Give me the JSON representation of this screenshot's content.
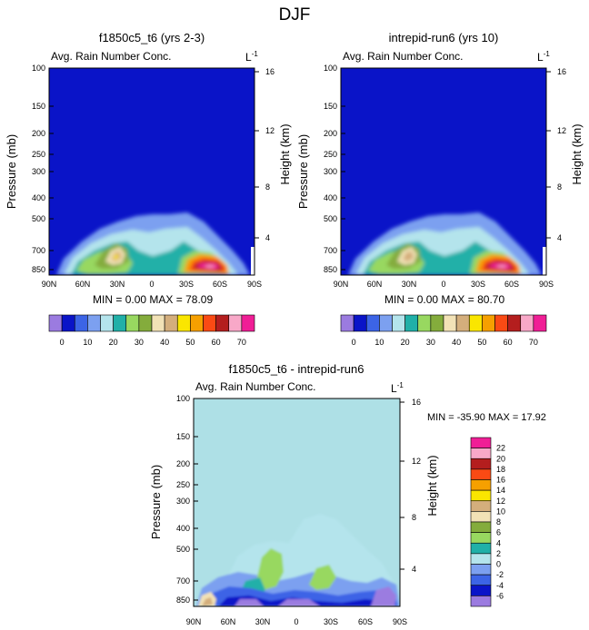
{
  "figure_title": "DJF",
  "colors": {
    "bg_dark_blue": "#0a14c8",
    "bg_diff_cyan": "#aee0e6"
  },
  "chart_data": [
    {
      "type": "heatmap",
      "title": "f1850c5_t6 (yrs 2-3)",
      "subtitle": "Avg. Rain Number Conc.",
      "units": "L",
      "units_exp": "-1",
      "xlabel": "",
      "ylabel": "Pressure (mb)",
      "ylabel_right": "Height (km)",
      "x_ticks": [
        "90N",
        "60N",
        "30N",
        "0",
        "30S",
        "60S",
        "90S"
      ],
      "y_ticks": [
        "100",
        "150",
        "200",
        "250",
        "300",
        "400",
        "500",
        "700",
        "850"
      ],
      "y_ticks_right": [
        "16",
        "12",
        "8",
        "4"
      ],
      "min_label": "MIN =",
      "min": "0.00",
      "max_label": "MAX =",
      "max": "78.09"
    },
    {
      "type": "heatmap",
      "title": "intrepid-run6 (yrs 10)",
      "subtitle": "Avg. Rain Number Conc.",
      "units": "L",
      "units_exp": "-1",
      "xlabel": "",
      "ylabel": "Pressure (mb)",
      "ylabel_right": "Height (km)",
      "x_ticks": [
        "90N",
        "60N",
        "30N",
        "0",
        "30S",
        "60S",
        "90S"
      ],
      "y_ticks": [
        "100",
        "150",
        "200",
        "250",
        "300",
        "400",
        "500",
        "700",
        "850"
      ],
      "y_ticks_right": [
        "16",
        "12",
        "8",
        "4"
      ],
      "min_label": "MIN =",
      "min": "0.00",
      "max_label": "MAX =",
      "max": "80.70"
    },
    {
      "type": "heatmap",
      "title": "f1850c5_t6 - intrepid-run6",
      "subtitle": "Avg. Rain Number Conc.",
      "units": "L",
      "units_exp": "-1",
      "xlabel": "",
      "ylabel": "Pressure (mb)",
      "ylabel_right": "Height (km)",
      "x_ticks": [
        "90N",
        "60N",
        "30N",
        "0",
        "30S",
        "60S",
        "90S"
      ],
      "y_ticks": [
        "100",
        "150",
        "200",
        "250",
        "300",
        "400",
        "500",
        "700",
        "850"
      ],
      "y_ticks_right": [
        "16",
        "12",
        "8",
        "4"
      ],
      "min_label": "MIN =",
      "min": "-35.90",
      "max_label": "MAX =",
      "max": "17.92"
    }
  ],
  "colorbar_top": {
    "colors": [
      "#9b7be0",
      "#0a14c8",
      "#3c64e6",
      "#7ca0f0",
      "#b4e4ec",
      "#20b0a8",
      "#98d860",
      "#84ac3c",
      "#f2e2b6",
      "#d4ae7c",
      "#fae600",
      "#f6a000",
      "#fa4a14",
      "#b41e1e",
      "#f8a8c8",
      "#f01e96"
    ],
    "labels": [
      "0",
      "10",
      "20",
      "30",
      "40",
      "50",
      "60",
      "70"
    ]
  },
  "colorbar_diff": {
    "colors": [
      "#9b7be0",
      "#0a14c8",
      "#3c64e6",
      "#7ca0f0",
      "#b4e4ec",
      "#20b0a8",
      "#98d860",
      "#84ac3c",
      "#f2e2b6",
      "#d4ae7c",
      "#fae600",
      "#f6a000",
      "#fa4a14",
      "#b41e1e",
      "#f8a8c8",
      "#f01e96"
    ],
    "labels": [
      "-6",
      "-4",
      "-2",
      "0",
      "2",
      "4",
      "6",
      "8",
      "10",
      "12",
      "14",
      "16",
      "18",
      "20",
      "22"
    ]
  }
}
